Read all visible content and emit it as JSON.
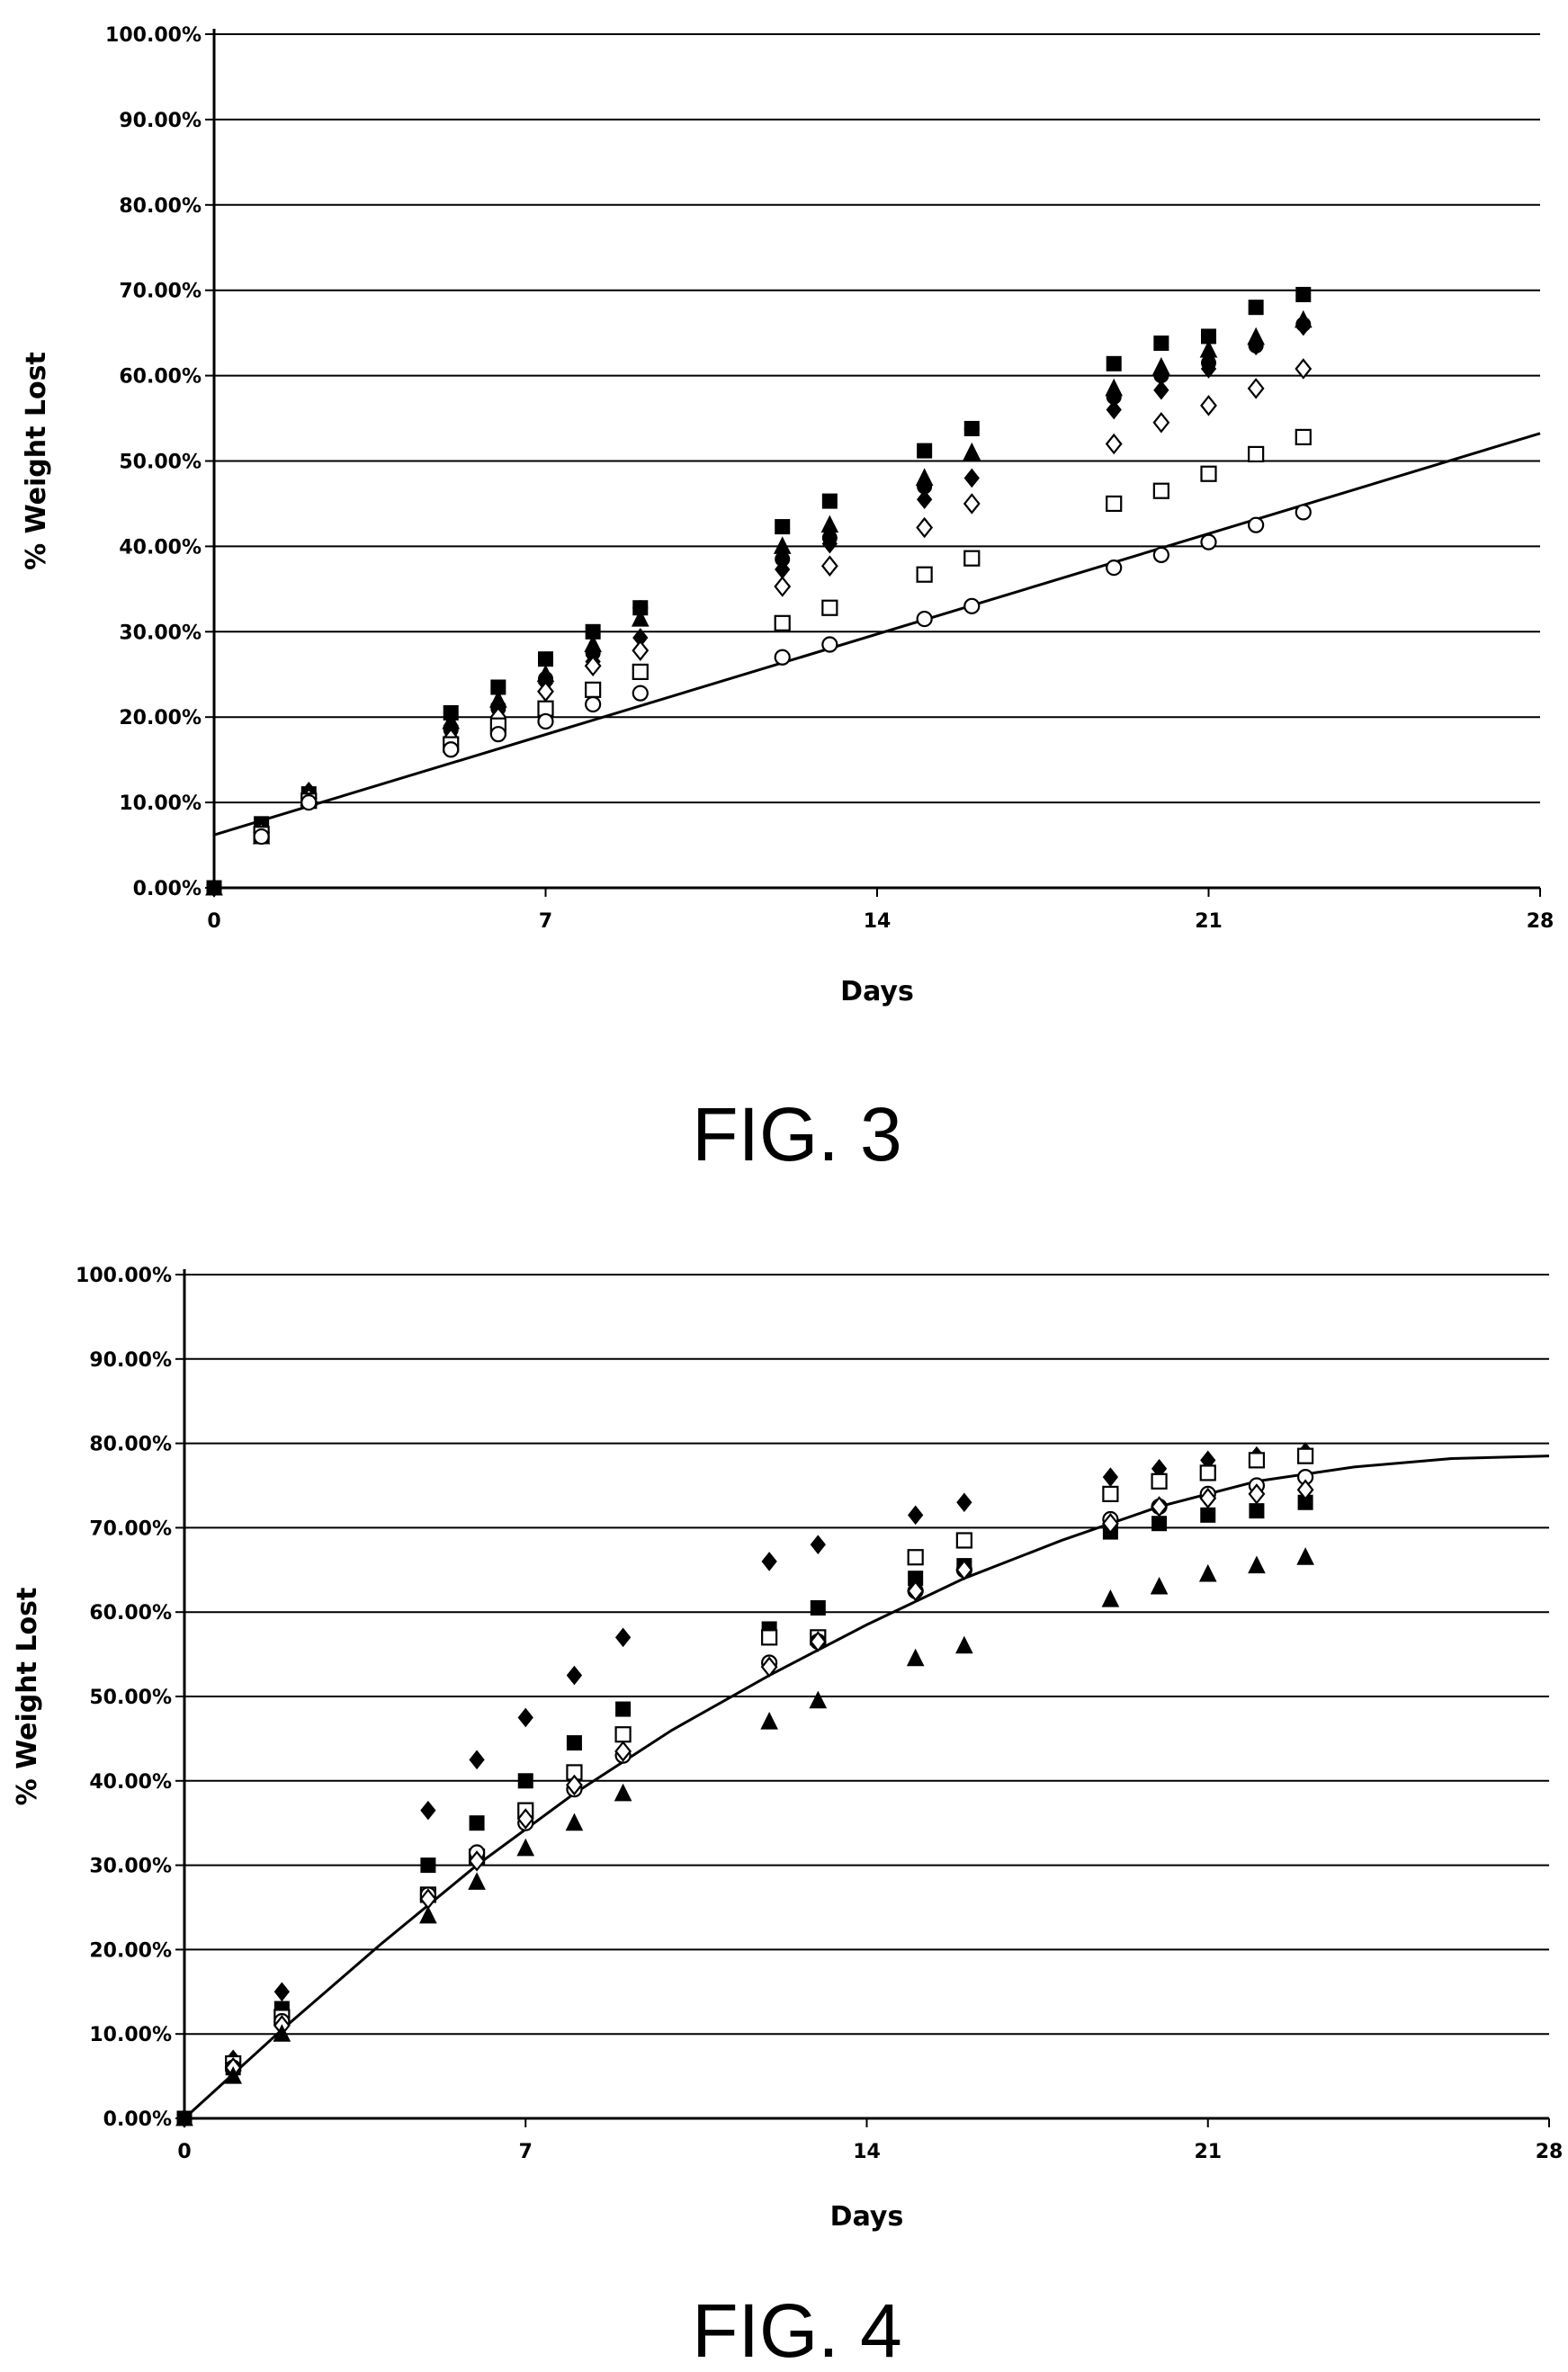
{
  "figures": [
    {
      "caption": "FIG. 3"
    },
    {
      "caption": "FIG. 4"
    }
  ],
  "chart_data": [
    {
      "type": "scatter",
      "title": "",
      "xlabel": "Days",
      "ylabel": "% Weight Lost",
      "xlim": [
        0,
        28
      ],
      "ylim": [
        0,
        100
      ],
      "x_ticks": [
        "0",
        "7",
        "14",
        "21",
        "28"
      ],
      "y_ticks": [
        "0.00%",
        "10.00%",
        "20.00%",
        "30.00%",
        "40.00%",
        "50.00%",
        "60.00%",
        "70.00%",
        "80.00%",
        "90.00%",
        "100.00%"
      ],
      "grid": "horizontal",
      "series": [
        {
          "marker": "filled-square",
          "x": [
            0,
            1,
            2,
            5,
            6,
            7,
            8,
            9,
            12,
            13,
            15,
            16,
            19,
            20,
            21,
            22,
            23
          ],
          "y": [
            0,
            7.5,
            11,
            20.5,
            23.5,
            26.8,
            30,
            32.8,
            42.3,
            45.3,
            51.2,
            53.8,
            61.4,
            63.8,
            64.6,
            68,
            69.5
          ]
        },
        {
          "marker": "filled-triangle",
          "x": [
            0,
            1,
            2,
            5,
            6,
            7,
            8,
            9,
            12,
            13,
            15,
            16,
            19,
            20,
            21,
            22,
            23
          ],
          "y": [
            0,
            6,
            10.5,
            19.5,
            22,
            25,
            28.5,
            31.5,
            40,
            42.5,
            48,
            51,
            58.5,
            61,
            63,
            64.5,
            66.5
          ]
        },
        {
          "marker": "filled-diamond",
          "x": [
            0,
            1,
            2,
            5,
            6,
            7,
            8,
            9,
            12,
            13,
            15,
            16,
            19,
            20,
            21,
            22,
            23
          ],
          "y": [
            0,
            7,
            11.3,
            19,
            21.5,
            24,
            26.5,
            29.3,
            37.3,
            40.3,
            45.5,
            48,
            56,
            58.3,
            60.8,
            63.5,
            65.8
          ]
        },
        {
          "marker": "filled-circle",
          "x": [
            0,
            1,
            2,
            5,
            6,
            7,
            8,
            9,
            12,
            13,
            15,
            16,
            19,
            20,
            21,
            22,
            23
          ],
          "y": [
            0,
            6.5,
            10.8,
            18.5,
            21,
            24.5,
            27.5,
            32.8,
            38.5,
            41,
            47,
            53.8,
            57.5,
            60,
            61.5,
            63.5,
            66
          ]
        },
        {
          "marker": "open-diamond",
          "x": [
            1,
            2,
            5,
            6,
            7,
            8,
            9,
            12,
            13,
            15,
            16,
            19,
            20,
            21,
            22,
            23
          ],
          "y": [
            6.5,
            10.5,
            17.5,
            20,
            23,
            26,
            27.8,
            35.3,
            37.7,
            42.2,
            45,
            52,
            54.5,
            56.5,
            58.5,
            60.8
          ]
        },
        {
          "marker": "open-square",
          "x": [
            1,
            2,
            5,
            6,
            7,
            8,
            9,
            12,
            13,
            15,
            16,
            19,
            20,
            21,
            22,
            23
          ],
          "y": [
            6.3,
            10.2,
            16.8,
            19,
            21,
            23.2,
            25.3,
            31,
            32.8,
            36.7,
            38.6,
            45,
            46.5,
            48.5,
            50.8,
            52.8
          ]
        },
        {
          "marker": "open-circle",
          "x": [
            1,
            2,
            5,
            6,
            7,
            8,
            9,
            12,
            13,
            15,
            16,
            19,
            20,
            21,
            22,
            23
          ],
          "y": [
            6,
            10,
            16.2,
            18,
            19.5,
            21.5,
            22.8,
            27,
            28.5,
            31.5,
            33,
            37.5,
            39,
            40.5,
            42.5,
            44
          ]
        }
      ],
      "trendline": {
        "type": "linear",
        "intercept": 6.2,
        "slope": 1.68
      }
    },
    {
      "type": "scatter",
      "title": "",
      "xlabel": "Days",
      "ylabel": "% Weight Lost",
      "xlim": [
        0,
        28
      ],
      "ylim": [
        0,
        100
      ],
      "x_ticks": [
        "0",
        "7",
        "14",
        "21",
        "28"
      ],
      "y_ticks": [
        "0.00%",
        "10.00%",
        "20.00%",
        "30.00%",
        "40.00%",
        "50.00%",
        "60.00%",
        "70.00%",
        "80.00%",
        "90.00%",
        "100.00%"
      ],
      "grid": "horizontal",
      "series": [
        {
          "marker": "filled-diamond",
          "x": [
            0,
            1,
            2,
            5,
            6,
            7,
            8,
            9,
            12,
            13,
            15,
            16,
            19,
            20,
            21,
            22,
            23
          ],
          "y": [
            0,
            7,
            15,
            36.5,
            42.5,
            47.5,
            52.5,
            57,
            66,
            68,
            71.5,
            73,
            76,
            77,
            78,
            78.5,
            79
          ]
        },
        {
          "marker": "filled-square",
          "x": [
            0,
            1,
            2,
            5,
            6,
            7,
            8,
            9,
            12,
            13,
            15,
            16,
            19,
            20,
            21,
            22,
            23
          ],
          "y": [
            0,
            6,
            13,
            30,
            35,
            40,
            44.5,
            48.5,
            58,
            60.5,
            64,
            65.5,
            69.5,
            70.5,
            71.5,
            72,
            73
          ]
        },
        {
          "marker": "open-square",
          "x": [
            1,
            2,
            5,
            6,
            7,
            8,
            9,
            12,
            13,
            15,
            16,
            19,
            20,
            21,
            22,
            23
          ],
          "y": [
            6.5,
            12,
            26.5,
            31,
            36.5,
            41,
            45.5,
            57,
            57,
            66.5,
            68.5,
            74,
            75.5,
            76.5,
            78,
            78.5
          ]
        },
        {
          "marker": "open-circle",
          "x": [
            1,
            2,
            5,
            6,
            7,
            8,
            9,
            12,
            13,
            15,
            16,
            19,
            20,
            21,
            22,
            23
          ],
          "y": [
            6,
            11.5,
            26.5,
            31.5,
            35,
            39,
            43,
            54,
            56.5,
            62.5,
            65,
            71,
            72.5,
            74,
            75,
            76
          ]
        },
        {
          "marker": "open-diamond",
          "x": [
            1,
            2,
            5,
            6,
            7,
            8,
            9,
            12,
            13,
            15,
            16,
            19,
            20,
            21,
            22,
            23
          ],
          "y": [
            6,
            11,
            26,
            30.5,
            35.5,
            39.5,
            43.5,
            53.5,
            56.5,
            62.5,
            65,
            70.5,
            72.5,
            73.5,
            74,
            74.5
          ]
        },
        {
          "marker": "filled-triangle",
          "x": [
            0,
            1,
            2,
            5,
            6,
            7,
            8,
            9,
            12,
            13,
            15,
            16,
            19,
            20,
            21,
            22,
            23
          ],
          "y": [
            0,
            5,
            10,
            24,
            28,
            32,
            35,
            38.5,
            47,
            49.5,
            54.5,
            56,
            61.5,
            63,
            64.5,
            65.5,
            66.5
          ]
        }
      ],
      "trendline": {
        "type": "saturating",
        "points": [
          [
            0,
            0
          ],
          [
            2,
            10.5
          ],
          [
            4,
            20.5
          ],
          [
            6,
            30
          ],
          [
            8,
            38.5
          ],
          [
            10,
            46
          ],
          [
            12,
            52.5
          ],
          [
            14,
            58.5
          ],
          [
            16,
            64
          ],
          [
            18,
            68.5
          ],
          [
            20,
            72.5
          ],
          [
            22,
            75.5
          ],
          [
            24,
            77.2
          ],
          [
            26,
            78.2
          ],
          [
            28,
            78.5
          ]
        ]
      }
    }
  ]
}
